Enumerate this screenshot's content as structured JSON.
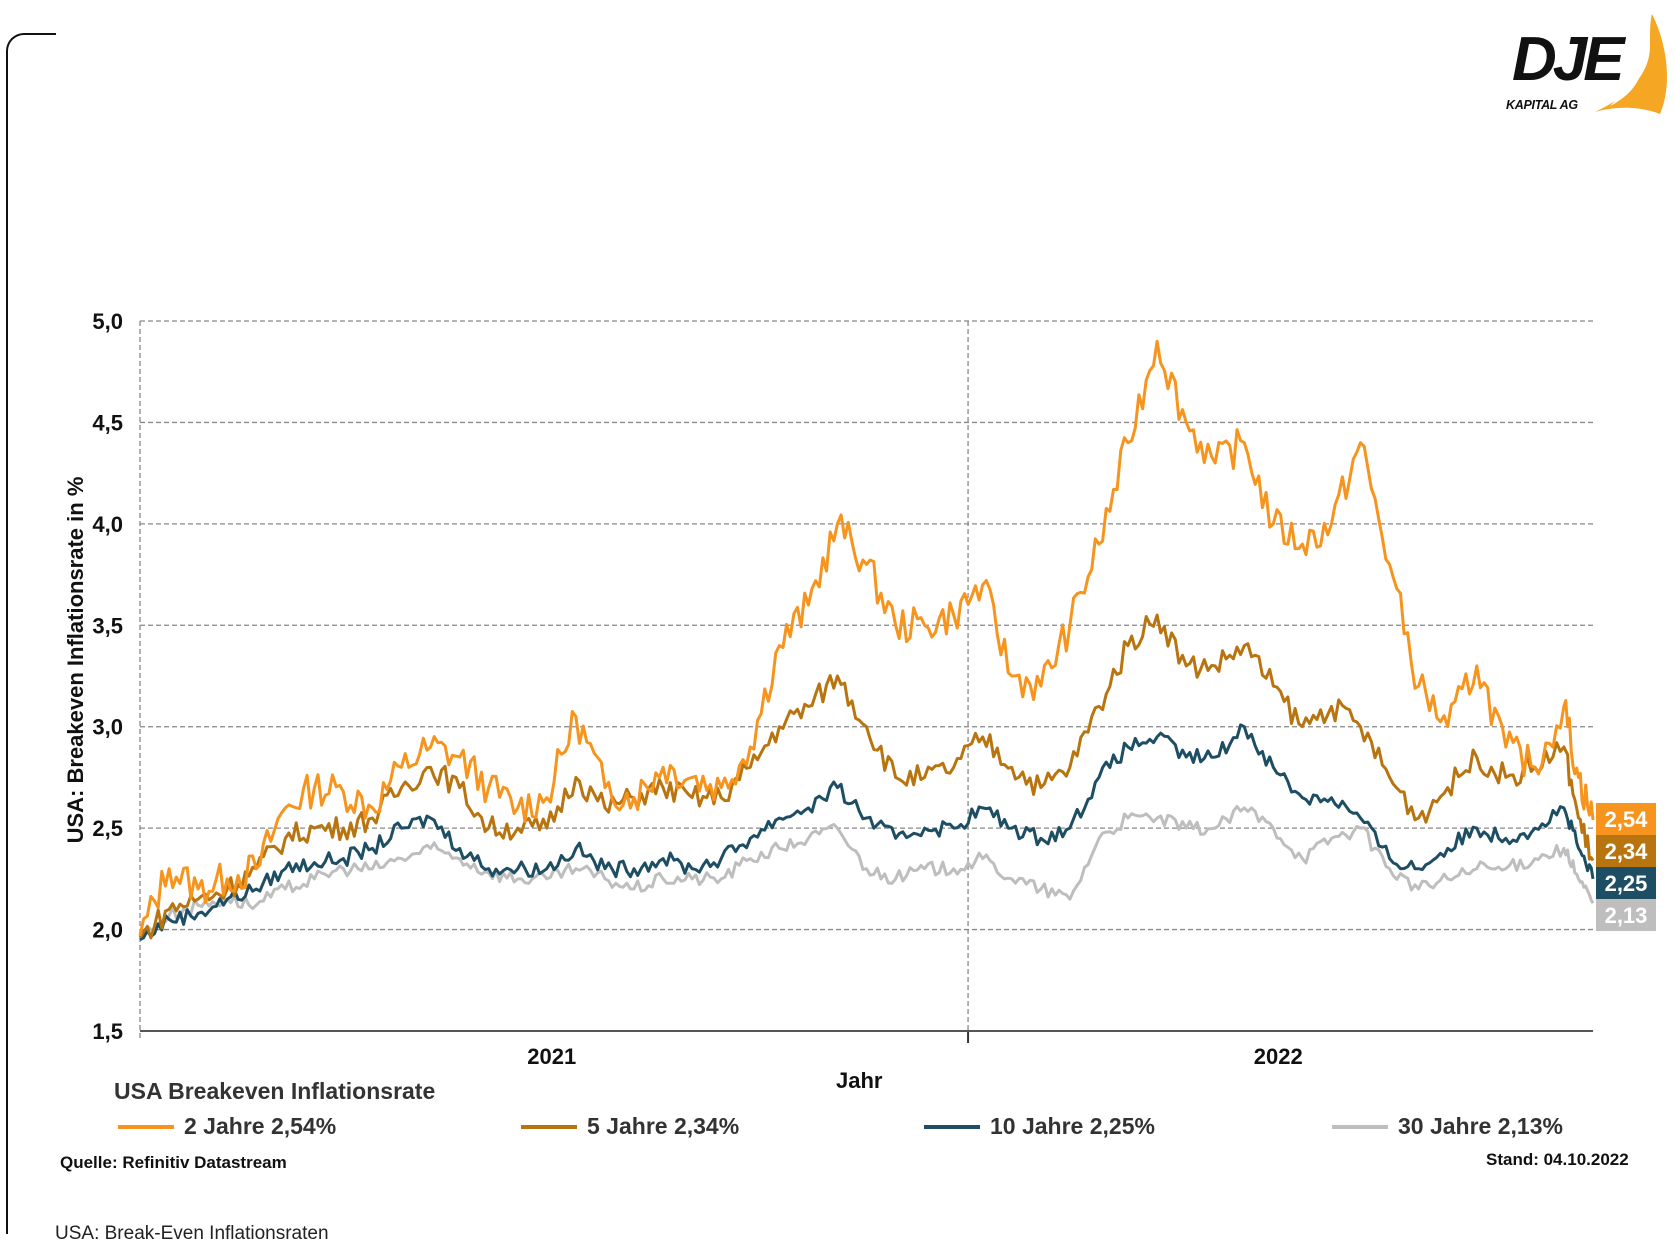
{
  "logo": {
    "brand": "DJE",
    "subtitle": "KAPITAL AG"
  },
  "footer": {
    "source": "Quelle: Refinitiv Datastream",
    "date": "Stand: 04.10.2022",
    "slide_title": "USA: Break-Even Inflationsraten"
  },
  "legend": {
    "title": "USA Breakeven Inflationsrate",
    "items": [
      {
        "label": "2 Jahre 2,54%",
        "color": "#F7941D"
      },
      {
        "label": "5 Jahre 2,34%",
        "color": "#B8740F"
      },
      {
        "label": "10 Jahre 2,25%",
        "color": "#1D4E63"
      },
      {
        "label": "30 Jahre 2,13%",
        "color": "#BEBEBE"
      }
    ]
  },
  "chart_data": {
    "type": "line",
    "title": "USA Breakeven Inflationsrate",
    "xlabel": "Jahr",
    "ylabel": "USA: Breakeven Inflationsrate in %",
    "ylim": [
      1.5,
      5.0
    ],
    "yticks": [
      "1,5",
      "2,0",
      "2,5",
      "3,0",
      "3,5",
      "4,0",
      "4,5",
      "5,0"
    ],
    "ytick_values": [
      1.5,
      2.0,
      2.5,
      3.0,
      3.5,
      4.0,
      4.5,
      5.0
    ],
    "xlim": [
      0,
      1
    ],
    "xticks": [
      {
        "label": "2021",
        "at": 0.2834
      },
      {
        "label": "2022",
        "at": 0.7834
      }
    ],
    "year_divider": 0.5699,
    "grid": true,
    "legend_position": "bottom",
    "x": [
      0.0,
      0.02,
      0.04,
      0.06,
      0.08,
      0.1,
      0.12,
      0.14,
      0.16,
      0.18,
      0.2,
      0.22,
      0.24,
      0.26,
      0.28,
      0.3,
      0.32,
      0.34,
      0.36,
      0.38,
      0.4,
      0.42,
      0.44,
      0.46,
      0.48,
      0.5,
      0.52,
      0.54,
      0.56,
      0.58,
      0.6,
      0.62,
      0.64,
      0.66,
      0.68,
      0.7,
      0.72,
      0.74,
      0.76,
      0.78,
      0.8,
      0.82,
      0.84,
      0.86,
      0.88,
      0.9,
      0.92,
      0.94,
      0.96,
      0.98,
      0.99,
      1.0
    ],
    "series": [
      {
        "name": "2 Jahre",
        "color": "#F7941D",
        "last_label": "2,54",
        "last_value": 2.54,
        "values": [
          1.97,
          2.3,
          2.2,
          2.25,
          2.3,
          2.6,
          2.7,
          2.68,
          2.6,
          2.8,
          2.9,
          2.85,
          2.7,
          2.6,
          2.65,
          3.05,
          2.7,
          2.65,
          2.8,
          2.75,
          2.7,
          2.9,
          3.4,
          3.6,
          4.0,
          3.8,
          3.5,
          3.5,
          3.55,
          3.7,
          3.25,
          3.2,
          3.5,
          3.9,
          4.4,
          4.9,
          4.5,
          4.3,
          4.4,
          4.0,
          3.9,
          4.0,
          4.4,
          3.8,
          3.2,
          3.0,
          3.3,
          2.9,
          2.8,
          3.1,
          2.75,
          2.54
        ]
      },
      {
        "name": "5 Jahre",
        "color": "#B8740F",
        "last_label": "2,34",
        "last_value": 2.34,
        "values": [
          1.96,
          2.1,
          2.15,
          2.2,
          2.3,
          2.45,
          2.5,
          2.5,
          2.55,
          2.7,
          2.8,
          2.7,
          2.5,
          2.5,
          2.5,
          2.75,
          2.6,
          2.65,
          2.7,
          2.65,
          2.65,
          2.8,
          3.0,
          3.1,
          3.25,
          3.0,
          2.75,
          2.75,
          2.8,
          2.95,
          2.8,
          2.7,
          2.8,
          3.1,
          3.4,
          3.55,
          3.3,
          3.3,
          3.4,
          3.2,
          3.0,
          3.1,
          3.0,
          2.75,
          2.55,
          2.7,
          2.85,
          2.75,
          2.8,
          2.9,
          2.55,
          2.34
        ]
      },
      {
        "name": "10 Jahre",
        "color": "#1D4E63",
        "last_label": "2,25",
        "last_value": 2.25,
        "values": [
          1.95,
          2.05,
          2.08,
          2.15,
          2.2,
          2.3,
          2.33,
          2.35,
          2.4,
          2.5,
          2.55,
          2.4,
          2.3,
          2.3,
          2.3,
          2.4,
          2.3,
          2.3,
          2.35,
          2.3,
          2.35,
          2.45,
          2.55,
          2.6,
          2.7,
          2.55,
          2.45,
          2.5,
          2.5,
          2.6,
          2.5,
          2.45,
          2.5,
          2.75,
          2.9,
          2.95,
          2.85,
          2.85,
          3.0,
          2.8,
          2.65,
          2.65,
          2.55,
          2.35,
          2.3,
          2.4,
          2.5,
          2.45,
          2.5,
          2.6,
          2.4,
          2.25
        ]
      },
      {
        "name": "30 Jahre",
        "color": "#BEBEBE",
        "last_label": "2,13",
        "last_value": 2.13,
        "values": [
          1.97,
          2.07,
          2.12,
          2.15,
          2.12,
          2.2,
          2.25,
          2.3,
          2.3,
          2.35,
          2.4,
          2.35,
          2.28,
          2.25,
          2.25,
          2.3,
          2.25,
          2.2,
          2.25,
          2.25,
          2.25,
          2.35,
          2.4,
          2.45,
          2.5,
          2.3,
          2.25,
          2.3,
          2.3,
          2.35,
          2.25,
          2.2,
          2.15,
          2.45,
          2.55,
          2.55,
          2.5,
          2.5,
          2.6,
          2.5,
          2.35,
          2.45,
          2.5,
          2.3,
          2.2,
          2.25,
          2.3,
          2.3,
          2.35,
          2.4,
          2.25,
          2.13
        ]
      }
    ]
  }
}
